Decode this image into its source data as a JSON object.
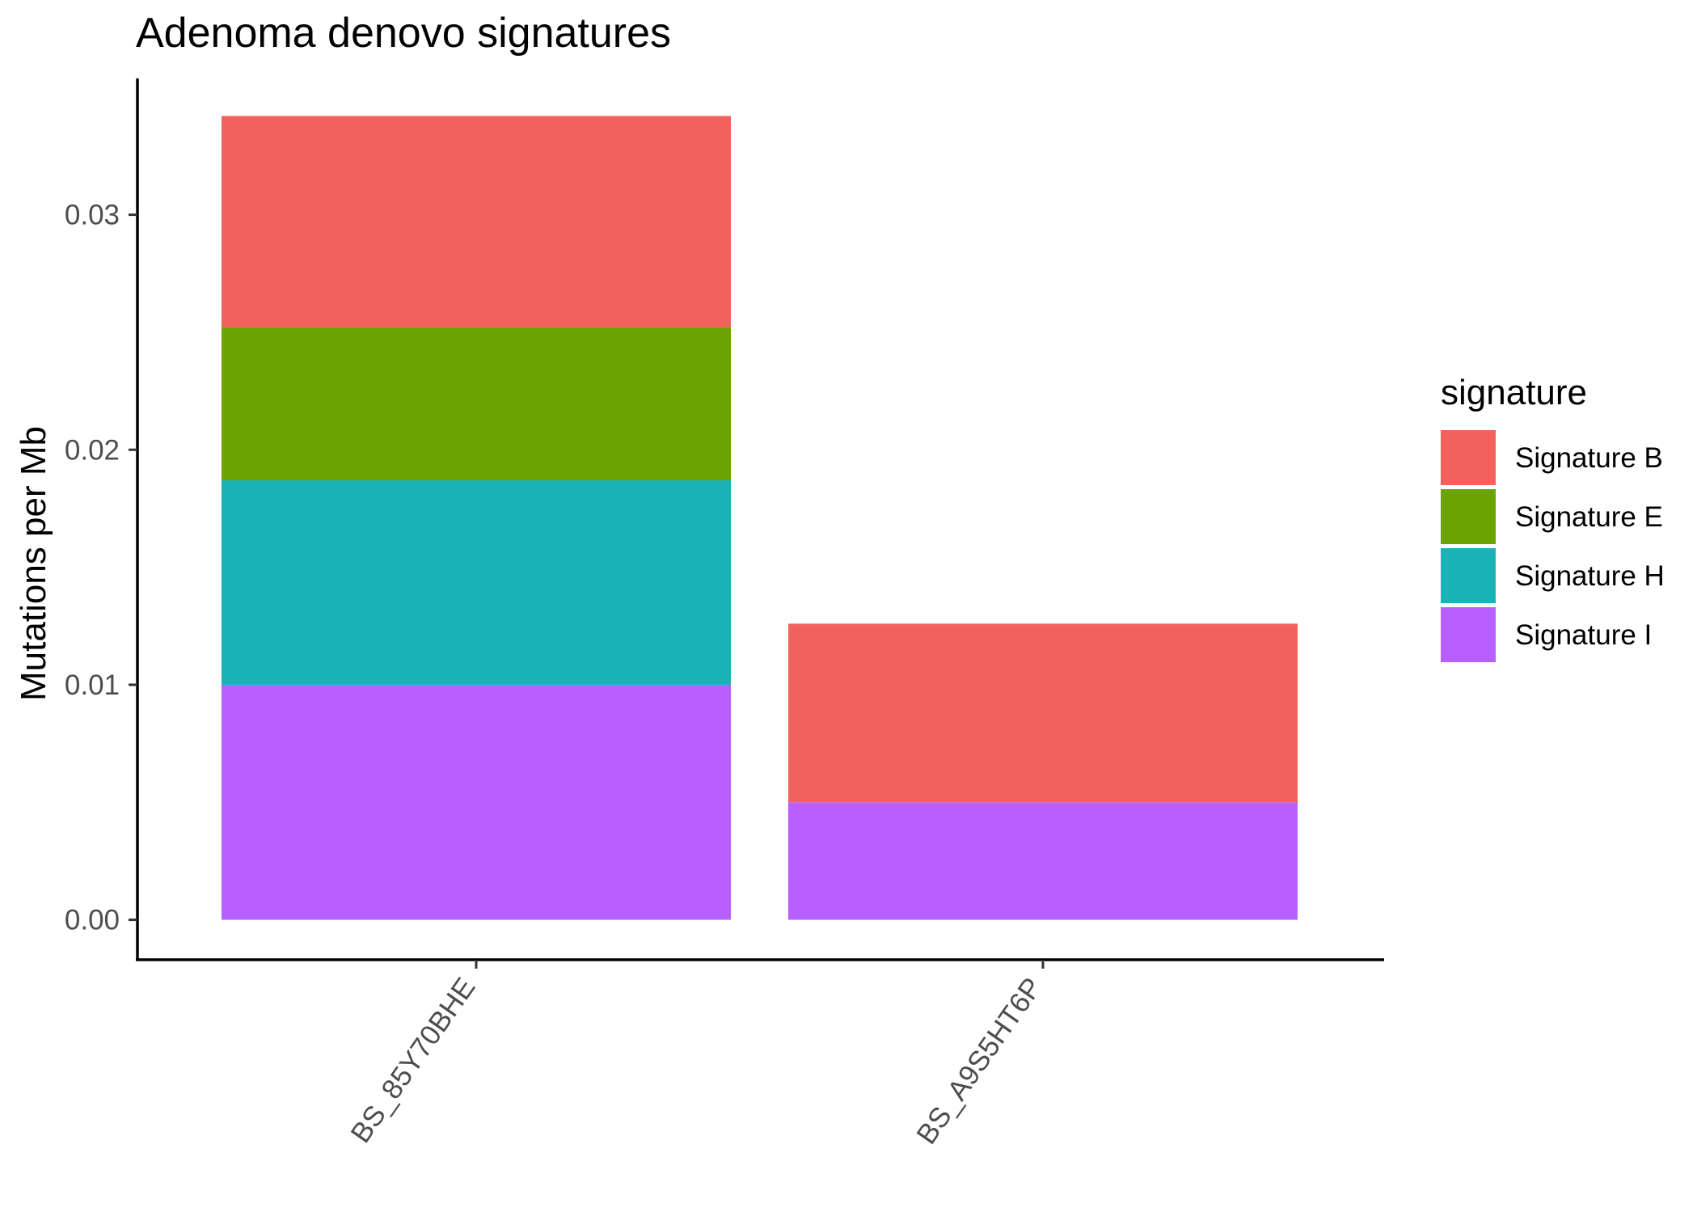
{
  "chart_data": {
    "type": "bar",
    "stacked": true,
    "title": "Adenoma denovo signatures",
    "xlabel": "",
    "ylabel": "Mutations per Mb",
    "categories": [
      "BS_85Y70BHE",
      "BS_A9S5HT6P"
    ],
    "series": [
      {
        "name": "Signature I",
        "color": "#B75FFF",
        "values": [
          0.01,
          0.005
        ]
      },
      {
        "name": "Signature H",
        "color": "#19B2B6",
        "values": [
          0.0087,
          0.0
        ]
      },
      {
        "name": "Signature E",
        "color": "#6BA302",
        "values": [
          0.0065,
          0.0
        ]
      },
      {
        "name": "Signature B",
        "color": "#F2615C",
        "values": [
          0.009,
          0.0076
        ]
      }
    ],
    "stack_order_bottom_to_top": [
      "Signature I",
      "Signature H",
      "Signature E",
      "Signature B"
    ],
    "ylim": [
      -0.0017,
      0.0358
    ],
    "yticks": [
      {
        "value": 0.0,
        "label": "0.00"
      },
      {
        "value": 0.01,
        "label": "0.01"
      },
      {
        "value": 0.02,
        "label": "0.02"
      },
      {
        "value": 0.03,
        "label": "0.03"
      }
    ],
    "grid": false,
    "legend": {
      "title": "signature",
      "position": "right",
      "entries": [
        {
          "label": "Signature B",
          "color": "#F2615C"
        },
        {
          "label": "Signature E",
          "color": "#6BA302"
        },
        {
          "label": "Signature H",
          "color": "#19B2B6"
        },
        {
          "label": "Signature I",
          "color": "#B75FFF"
        }
      ]
    }
  }
}
